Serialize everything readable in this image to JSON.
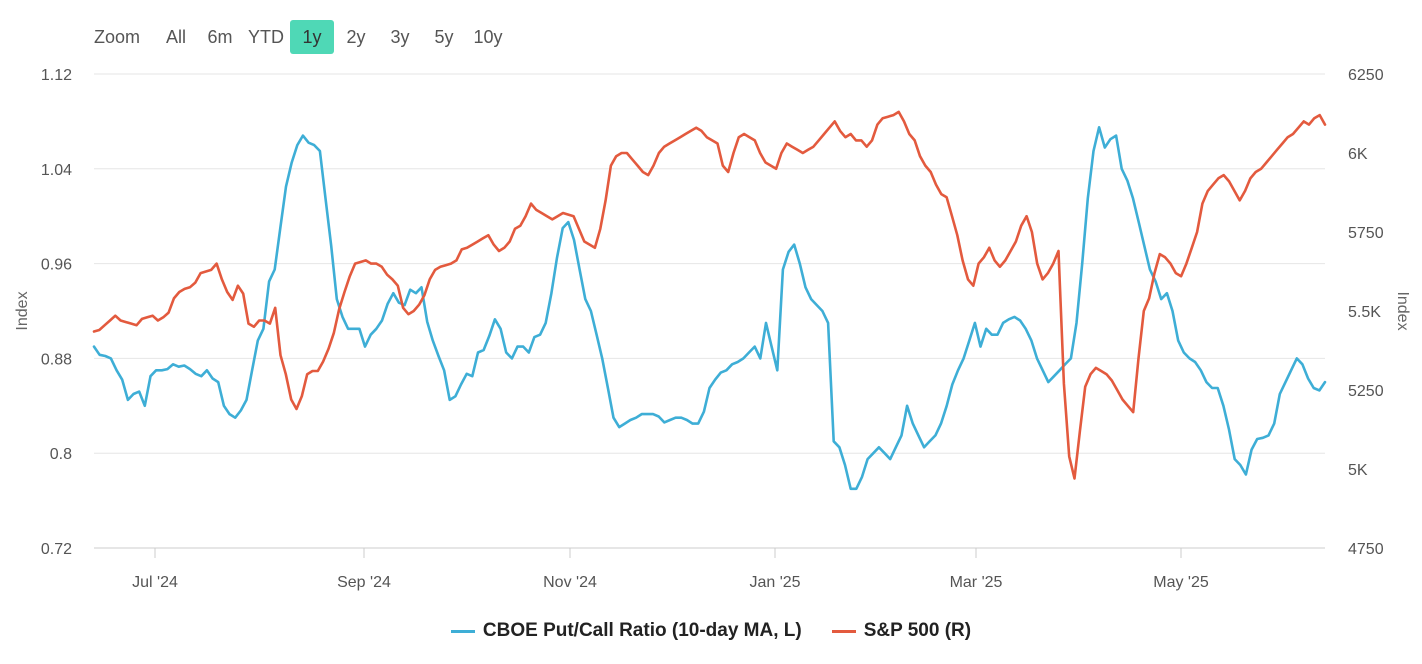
{
  "zoom": {
    "label": "Zoom",
    "buttons": [
      "All",
      "6m",
      "YTD",
      "1y",
      "2y",
      "3y",
      "5y",
      "10y"
    ],
    "active": "1y",
    "active_color": "#4fd8b6"
  },
  "chart_data": {
    "type": "line",
    "x_ticks": [
      "Jul '24",
      "Sep '24",
      "Nov '24",
      "Jan '25",
      "Mar '25",
      "May '25"
    ],
    "y_left": {
      "label": "Index",
      "ticks": [
        "1.12",
        "1.04",
        "0.96",
        "0.88",
        "0.8",
        "0.72"
      ],
      "range": [
        0.72,
        1.12
      ]
    },
    "y_right": {
      "label": "Index",
      "ticks": [
        "6250",
        "6K",
        "5750",
        "5.5K",
        "5250",
        "5K",
        "4750"
      ],
      "range": [
        4750,
        6250
      ]
    },
    "series": [
      {
        "name": "CBOE Put/Call Ratio (10-day MA, L)",
        "axis": "left",
        "color": "#3eaed6",
        "values": [
          0.89,
          0.883,
          0.882,
          0.88,
          0.87,
          0.862,
          0.845,
          0.85,
          0.852,
          0.84,
          0.865,
          0.87,
          0.87,
          0.871,
          0.875,
          0.873,
          0.874,
          0.871,
          0.867,
          0.865,
          0.87,
          0.863,
          0.86,
          0.84,
          0.833,
          0.83,
          0.836,
          0.845,
          0.87,
          0.895,
          0.905,
          0.945,
          0.955,
          0.99,
          1.025,
          1.045,
          1.06,
          1.068,
          1.062,
          1.06,
          1.055,
          1.015,
          0.975,
          0.93,
          0.915,
          0.905,
          0.905,
          0.905,
          0.89,
          0.9,
          0.905,
          0.912,
          0.926,
          0.935,
          0.927,
          0.925,
          0.938,
          0.935,
          0.94,
          0.911,
          0.895,
          0.882,
          0.87,
          0.845,
          0.848,
          0.858,
          0.867,
          0.865,
          0.885,
          0.887,
          0.899,
          0.913,
          0.905,
          0.885,
          0.88,
          0.89,
          0.89,
          0.885,
          0.898,
          0.9,
          0.91,
          0.935,
          0.965,
          0.99,
          0.995,
          0.98,
          0.955,
          0.93,
          0.92,
          0.9,
          0.88,
          0.855,
          0.83,
          0.822,
          0.825,
          0.828,
          0.83,
          0.833,
          0.833,
          0.833,
          0.831,
          0.826,
          0.828,
          0.83,
          0.83,
          0.828,
          0.825,
          0.825,
          0.835,
          0.855,
          0.862,
          0.868,
          0.87,
          0.875,
          0.877,
          0.88,
          0.885,
          0.89,
          0.88,
          0.91,
          0.89,
          0.87,
          0.955,
          0.97,
          0.976,
          0.96,
          0.94,
          0.93,
          0.925,
          0.92,
          0.91,
          0.81,
          0.805,
          0.79,
          0.77,
          0.77,
          0.78,
          0.795,
          0.8,
          0.805,
          0.8,
          0.795,
          0.805,
          0.815,
          0.84,
          0.825,
          0.815,
          0.805,
          0.81,
          0.815,
          0.825,
          0.84,
          0.858,
          0.87,
          0.88,
          0.895,
          0.91,
          0.89,
          0.905,
          0.9,
          0.9,
          0.91,
          0.913,
          0.915,
          0.912,
          0.905,
          0.895,
          0.88,
          0.87,
          0.86,
          0.865,
          0.87,
          0.875,
          0.88,
          0.91,
          0.96,
          1.015,
          1.055,
          1.075,
          1.058,
          1.065,
          1.068,
          1.04,
          1.03,
          1.015,
          0.995,
          0.975,
          0.955,
          0.945,
          0.93,
          0.935,
          0.92,
          0.895,
          0.885,
          0.88,
          0.877,
          0.87,
          0.86,
          0.855,
          0.855,
          0.84,
          0.82,
          0.795,
          0.79,
          0.782,
          0.803,
          0.812,
          0.813,
          0.815,
          0.825,
          0.85,
          0.86,
          0.87,
          0.88,
          0.875,
          0.863,
          0.855,
          0.853,
          0.86
        ]
      },
      {
        "name": "S&P 500 (R)",
        "axis": "right",
        "color": "#e35a3e",
        "values": [
          5435,
          5440,
          5455,
          5470,
          5485,
          5470,
          5465,
          5460,
          5455,
          5475,
          5480,
          5485,
          5470,
          5480,
          5495,
          5540,
          5560,
          5570,
          5575,
          5590,
          5620,
          5625,
          5630,
          5650,
          5600,
          5560,
          5535,
          5580,
          5555,
          5460,
          5450,
          5470,
          5470,
          5460,
          5510,
          5360,
          5300,
          5220,
          5190,
          5230,
          5300,
          5310,
          5310,
          5340,
          5380,
          5430,
          5505,
          5560,
          5610,
          5650,
          5655,
          5660,
          5650,
          5650,
          5640,
          5615,
          5600,
          5580,
          5510,
          5490,
          5500,
          5520,
          5550,
          5600,
          5630,
          5640,
          5645,
          5650,
          5660,
          5695,
          5700,
          5710,
          5720,
          5730,
          5740,
          5710,
          5690,
          5700,
          5720,
          5760,
          5770,
          5800,
          5840,
          5820,
          5810,
          5800,
          5790,
          5800,
          5810,
          5805,
          5800,
          5760,
          5720,
          5710,
          5700,
          5760,
          5850,
          5960,
          5990,
          6000,
          6000,
          5980,
          5960,
          5940,
          5930,
          5960,
          6000,
          6020,
          6030,
          6040,
          6050,
          6060,
          6070,
          6080,
          6070,
          6050,
          6040,
          6030,
          5960,
          5940,
          6000,
          6050,
          6060,
          6050,
          6040,
          6000,
          5970,
          5960,
          5950,
          6000,
          6030,
          6020,
          6010,
          6000,
          6010,
          6020,
          6040,
          6060,
          6080,
          6100,
          6070,
          6050,
          6060,
          6040,
          6040,
          6020,
          6040,
          6090,
          6110,
          6115,
          6120,
          6130,
          6100,
          6060,
          6040,
          5990,
          5960,
          5940,
          5900,
          5870,
          5860,
          5800,
          5740,
          5660,
          5600,
          5580,
          5650,
          5670,
          5700,
          5660,
          5640,
          5660,
          5690,
          5720,
          5770,
          5800,
          5750,
          5650,
          5600,
          5620,
          5650,
          5690,
          5270,
          5040,
          4970,
          5120,
          5260,
          5300,
          5320,
          5310,
          5300,
          5280,
          5250,
          5220,
          5200,
          5180,
          5350,
          5500,
          5540,
          5620,
          5680,
          5670,
          5650,
          5620,
          5610,
          5650,
          5700,
          5750,
          5840,
          5880,
          5900,
          5920,
          5930,
          5910,
          5880,
          5850,
          5880,
          5920,
          5940,
          5950,
          5970,
          5990,
          6010,
          6030,
          6050,
          6060,
          6080,
          6100,
          6090,
          6110,
          6120,
          6090
        ]
      }
    ]
  }
}
